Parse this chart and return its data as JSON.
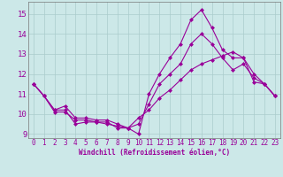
{
  "xlabel": "Windchill (Refroidissement éolien,°C)",
  "bg_color": "#cce8e8",
  "grid_color": "#aacccc",
  "line_color": "#990099",
  "xlim": [
    -0.5,
    23.5
  ],
  "ylim": [
    8.8,
    15.6
  ],
  "yticks": [
    9,
    10,
    11,
    12,
    13,
    14,
    15
  ],
  "xticks": [
    0,
    1,
    2,
    3,
    4,
    5,
    6,
    7,
    8,
    9,
    10,
    11,
    12,
    13,
    14,
    15,
    16,
    17,
    18,
    19,
    20,
    21,
    22,
    23
  ],
  "line1_x": [
    0,
    1,
    2,
    3,
    4,
    5,
    6,
    7,
    8,
    9,
    10,
    11,
    12,
    13,
    14,
    15,
    16,
    17,
    18,
    19,
    20,
    21,
    22,
    23
  ],
  "line1_y": [
    11.5,
    10.9,
    10.2,
    10.2,
    9.5,
    9.6,
    9.6,
    9.6,
    9.3,
    9.3,
    9.0,
    11.0,
    12.0,
    12.8,
    13.5,
    14.7,
    15.2,
    14.3,
    13.2,
    12.8,
    12.8,
    11.6,
    11.5,
    10.9
  ],
  "line2_x": [
    0,
    1,
    2,
    3,
    4,
    5,
    6,
    7,
    8,
    9,
    10,
    11,
    12,
    13,
    14,
    15,
    16,
    17,
    18,
    19,
    20,
    21,
    22,
    23
  ],
  "line2_y": [
    11.5,
    10.9,
    10.2,
    10.4,
    9.8,
    9.8,
    9.7,
    9.7,
    9.5,
    9.3,
    9.5,
    10.5,
    11.5,
    12.0,
    12.5,
    13.5,
    14.0,
    13.5,
    12.8,
    12.2,
    12.5,
    11.8,
    11.5,
    10.9
  ],
  "line3_x": [
    0,
    1,
    2,
    3,
    4,
    5,
    6,
    7,
    8,
    9,
    10,
    11,
    12,
    13,
    14,
    15,
    16,
    17,
    18,
    19,
    20,
    21,
    22,
    23
  ],
  "line3_y": [
    11.5,
    10.9,
    10.1,
    10.1,
    9.7,
    9.7,
    9.6,
    9.5,
    9.4,
    9.3,
    9.8,
    10.2,
    10.8,
    11.2,
    11.7,
    12.2,
    12.5,
    12.7,
    12.9,
    13.1,
    12.8,
    12.0,
    11.5,
    10.9
  ],
  "xlabel_fontsize": 5.5,
  "tick_fontsize": 5.5,
  "ytick_fontsize": 6.5,
  "linewidth": 0.8,
  "markersize": 2.0
}
